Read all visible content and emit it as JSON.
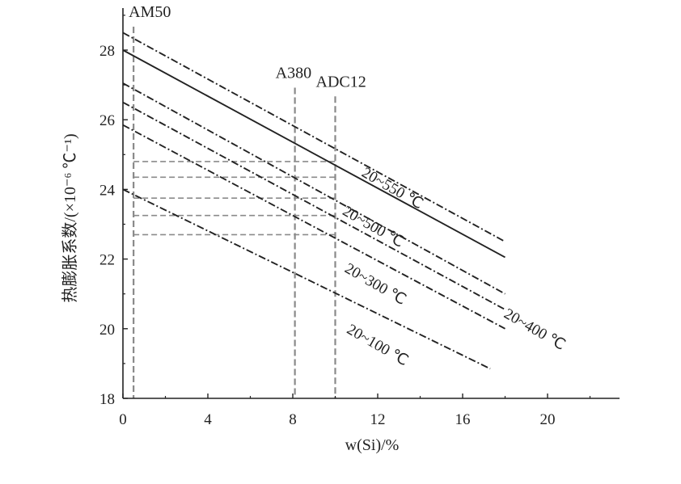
{
  "chart_data": {
    "type": "line",
    "xlabel": "w(Si)/%",
    "ylabel": "热膨胀系数/(×10⁻⁶ ℃⁻¹)",
    "xlim": [
      0,
      23.4
    ],
    "ylim": [
      18,
      29.1
    ],
    "xticks": [
      "0",
      "4",
      "8",
      "12",
      "16",
      "20"
    ],
    "xtick_values": [
      0,
      4,
      8,
      12,
      16,
      20
    ],
    "yticks": [
      "18",
      "20",
      "22",
      "24",
      "26",
      "28"
    ],
    "ytick_values": [
      18,
      20,
      22,
      24,
      26,
      28
    ],
    "series": [
      {
        "x": [
          0,
          18
        ],
        "y": [
          28.5,
          22.5
        ],
        "style": "dashdot"
      },
      {
        "x": [
          0,
          18
        ],
        "y": [
          28.0,
          22.05
        ],
        "style": "solid"
      },
      {
        "x": [
          0,
          18
        ],
        "y": [
          27.05,
          21.0
        ],
        "style": "dashdot"
      },
      {
        "x": [
          0,
          18
        ],
        "y": [
          26.5,
          20.55
        ],
        "style": "dashdot"
      },
      {
        "x": [
          0,
          18
        ],
        "y": [
          25.85,
          20.0
        ],
        "style": "dashdot"
      },
      {
        "x": [
          0,
          17.3
        ],
        "y": [
          24.0,
          18.85
        ],
        "style": "dashdot"
      }
    ],
    "annotations": [
      {
        "text": "20~550 ℃",
        "x": 11.2,
        "y": 24.4,
        "rotate": 30
      },
      {
        "text": "20~500 ℃",
        "x": 10.3,
        "y": 23.3,
        "rotate": 30
      },
      {
        "text": "20~400 ℃",
        "x": 17.9,
        "y": 20.35,
        "rotate": 30
      },
      {
        "text": "20~300 ℃",
        "x": 10.4,
        "y": 21.65,
        "rotate": 30
      },
      {
        "text": "20~100 ℃",
        "x": 10.5,
        "y": 19.9,
        "rotate": 30
      }
    ],
    "alloys": [
      {
        "name": "AM50",
        "x": 0.5,
        "label_y": 28.95
      },
      {
        "name": "A380",
        "x": 8.1,
        "label_y": 27.2
      },
      {
        "name": "ADC12",
        "x": 10.0,
        "label_y": 26.95
      }
    ],
    "reference_lines_y": [
      24.8,
      24.35,
      23.75,
      23.25,
      22.7
    ]
  }
}
